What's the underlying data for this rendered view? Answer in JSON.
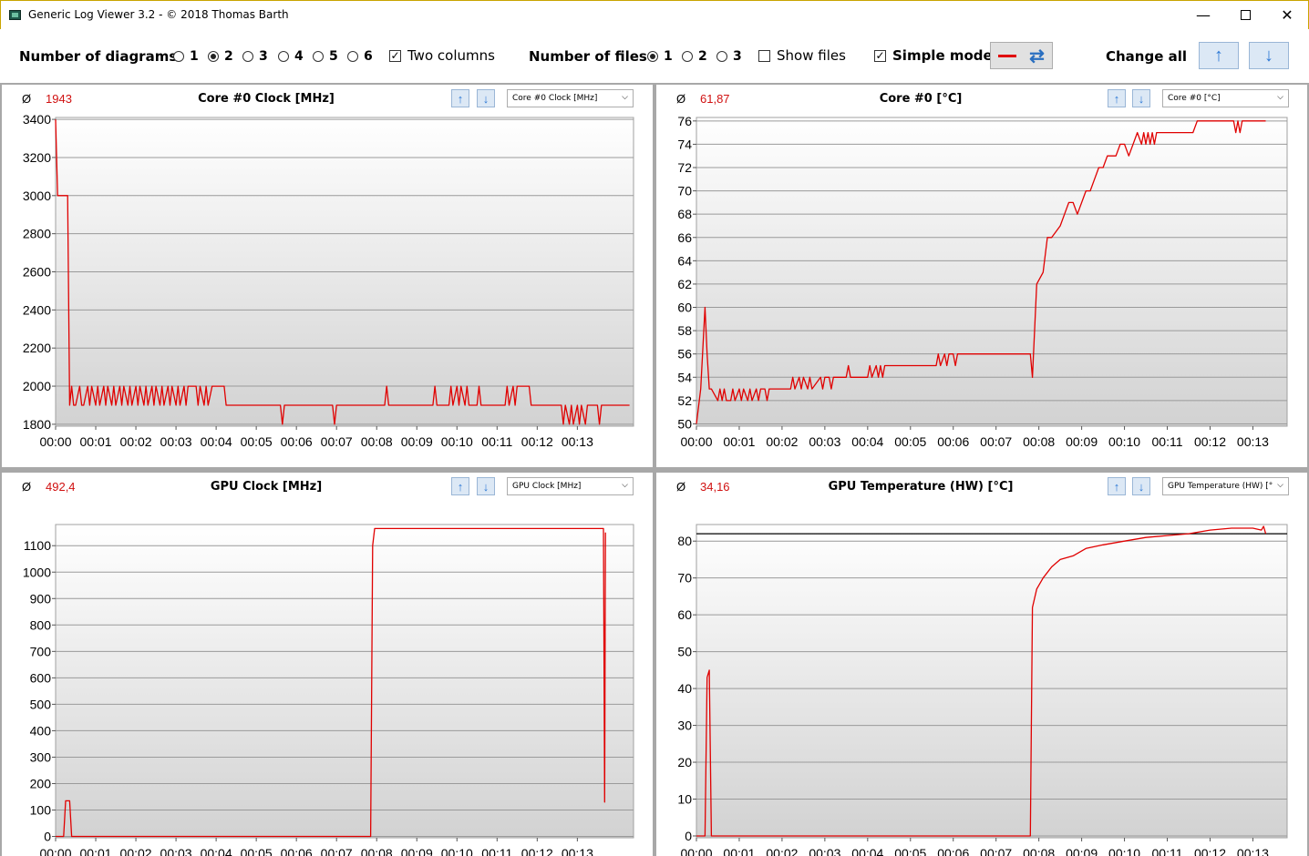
{
  "window": {
    "title": "Generic Log Viewer 3.2 - © 2018 Thomas Barth",
    "minimize_glyph": "—",
    "close_glyph": "✕"
  },
  "toolbar": {
    "diagrams_label": "Number of diagrams",
    "diagram_options": [
      "1",
      "2",
      "3",
      "4",
      "5",
      "6"
    ],
    "diagram_selected": "2",
    "two_columns_label": "Two columns",
    "two_columns_checked": true,
    "files_label": "Number of files",
    "file_options": [
      "1",
      "2",
      "3"
    ],
    "file_selected": "1",
    "show_files_label": "Show files",
    "show_files_checked": false,
    "simple_mode_label": "Simple mode",
    "simple_mode_checked": true,
    "change_all_label": "Change all",
    "line_color": "#e00000",
    "icons": [
      "refresh-icon",
      "arrow-up-icon",
      "arrow-down-icon"
    ]
  },
  "chart_data": [
    {
      "type": "line",
      "title": "Core #0 Clock [MHz]",
      "average_symbol": "Ø",
      "average": "1943",
      "selector": "Core #0 Clock [MHz]",
      "x_ticks": [
        "00:00",
        "00:01",
        "00:02",
        "00:03",
        "00:04",
        "00:05",
        "00:06",
        "00:07",
        "00:08",
        "00:09",
        "00:10",
        "00:11",
        "00:12",
        "00:13"
      ],
      "xlim_minutes": [
        0,
        14.4
      ],
      "y_ticks": [
        1800,
        2000,
        2200,
        2400,
        2600,
        2800,
        3000,
        3200,
        3400
      ],
      "ylim": [
        1790,
        3410
      ],
      "series_color": "#e00000",
      "series": {
        "x": [
          0,
          0.05,
          0.3,
          0.35,
          0.4,
          0.45,
          0.5,
          0.6,
          0.65,
          0.7,
          0.8,
          0.85,
          0.9,
          1.0,
          1.05,
          1.1,
          1.2,
          1.25,
          1.3,
          1.4,
          1.45,
          1.5,
          1.6,
          1.65,
          1.7,
          1.8,
          1.85,
          1.9,
          2.0,
          2.05,
          2.1,
          2.2,
          2.25,
          2.3,
          2.4,
          2.45,
          2.5,
          2.6,
          2.65,
          2.7,
          2.8,
          2.85,
          2.9,
          3.0,
          3.05,
          3.1,
          3.2,
          3.25,
          3.3,
          3.5,
          3.55,
          3.6,
          3.7,
          3.75,
          3.8,
          3.9,
          3.95,
          4.0,
          4.2,
          4.25,
          5.6,
          5.65,
          5.7,
          6.9,
          6.95,
          7.0,
          8.2,
          8.25,
          8.3,
          9.4,
          9.45,
          9.5,
          9.8,
          9.85,
          9.9,
          10.0,
          10.05,
          10.1,
          10.2,
          10.25,
          10.3,
          10.5,
          10.55,
          10.6,
          11.2,
          11.25,
          11.3,
          11.4,
          11.45,
          11.5,
          11.8,
          11.85,
          11.9,
          12.6,
          12.65,
          12.7,
          12.8,
          12.85,
          12.9,
          13.0,
          13.05,
          13.1,
          13.2,
          13.25,
          13.3,
          13.5,
          13.55,
          13.6,
          14.3
        ],
        "y": [
          3400,
          3000,
          3000,
          1900,
          2000,
          1900,
          1900,
          2000,
          1900,
          1900,
          2000,
          1900,
          2000,
          1900,
          2000,
          1900,
          2000,
          1900,
          2000,
          1900,
          2000,
          1900,
          2000,
          1900,
          2000,
          1900,
          2000,
          1900,
          2000,
          1900,
          2000,
          1900,
          2000,
          1900,
          2000,
          1900,
          2000,
          1900,
          2000,
          1900,
          2000,
          1900,
          2000,
          1900,
          2000,
          1900,
          2000,
          1900,
          2000,
          2000,
          1900,
          2000,
          1900,
          2000,
          1900,
          2000,
          2000,
          2000,
          2000,
          1900,
          1900,
          1800,
          1900,
          1900,
          1800,
          1900,
          1900,
          2000,
          1900,
          1900,
          2000,
          1900,
          1900,
          2000,
          1900,
          2000,
          1900,
          2000,
          1900,
          2000,
          1900,
          1900,
          2000,
          1900,
          1900,
          2000,
          1900,
          2000,
          1900,
          2000,
          2000,
          1900,
          1900,
          1900,
          1800,
          1900,
          1800,
          1900,
          1800,
          1900,
          1800,
          1900,
          1800,
          1900,
          1900,
          1900,
          1800,
          1900,
          1900
        ]
      }
    },
    {
      "type": "line",
      "title": "Core #0 [°C]",
      "average_symbol": "Ø",
      "average": "61,87",
      "selector": "Core #0 [°C]",
      "x_ticks": [
        "00:00",
        "00:01",
        "00:02",
        "00:03",
        "00:04",
        "00:05",
        "00:06",
        "00:07",
        "00:08",
        "00:09",
        "00:10",
        "00:11",
        "00:12",
        "00:13"
      ],
      "xlim_minutes": [
        0,
        13.8
      ],
      "y_ticks": [
        50,
        52,
        54,
        56,
        58,
        60,
        62,
        64,
        66,
        68,
        70,
        72,
        74,
        76
      ],
      "ylim": [
        49.8,
        76.3
      ],
      "series_color": "#e00000",
      "series": {
        "x": [
          0,
          0.1,
          0.2,
          0.25,
          0.3,
          0.35,
          0.5,
          0.55,
          0.6,
          0.65,
          0.7,
          0.8,
          0.85,
          0.9,
          1.0,
          1.05,
          1.1,
          1.2,
          1.25,
          1.3,
          1.4,
          1.45,
          1.5,
          1.6,
          1.65,
          1.7,
          2.2,
          2.25,
          2.3,
          2.4,
          2.45,
          2.5,
          2.6,
          2.65,
          2.7,
          2.9,
          2.95,
          3.0,
          3.1,
          3.15,
          3.2,
          3.5,
          3.55,
          3.6,
          3.9,
          4.0,
          4.05,
          4.1,
          4.2,
          4.25,
          4.3,
          4.35,
          4.4,
          4.5,
          5.6,
          5.65,
          5.7,
          5.8,
          5.85,
          5.9,
          6.0,
          6.05,
          6.1,
          6.4,
          6.5,
          7.8,
          7.85,
          7.95,
          8.1,
          8.2,
          8.3,
          8.5,
          8.6,
          8.7,
          8.8,
          8.9,
          9.1,
          9.2,
          9.3,
          9.4,
          9.5,
          9.6,
          9.8,
          9.9,
          10.0,
          10.1,
          10.3,
          10.4,
          10.45,
          10.5,
          10.55,
          10.6,
          10.65,
          10.7,
          10.75,
          10.8,
          11.1,
          11.2,
          11.6,
          11.7,
          11.75,
          11.8,
          12.0,
          12.05,
          12.1,
          12.3,
          12.5,
          12.55,
          12.6,
          12.65,
          12.7,
          12.75,
          12.8,
          13.3
        ],
        "y": [
          50,
          53,
          60,
          56,
          53,
          53,
          52,
          53,
          52,
          53,
          52,
          52,
          53,
          52,
          53,
          52,
          53,
          52,
          53,
          52,
          53,
          52,
          53,
          53,
          52,
          53,
          53,
          54,
          53,
          54,
          53,
          54,
          53,
          54,
          53,
          54,
          53,
          54,
          54,
          53,
          54,
          54,
          55,
          54,
          54,
          54,
          55,
          54,
          55,
          54,
          55,
          54,
          55,
          55,
          55,
          56,
          55,
          56,
          55,
          56,
          56,
          55,
          56,
          56,
          56,
          56,
          54,
          62,
          63,
          66,
          66,
          67,
          68,
          69,
          69,
          68,
          70,
          70,
          71,
          72,
          72,
          73,
          73,
          74,
          74,
          73,
          75,
          74,
          75,
          74,
          75,
          74,
          75,
          74,
          75,
          75,
          75,
          75,
          75,
          76,
          76,
          76,
          76,
          76,
          76,
          76,
          76,
          76,
          75,
          76,
          75,
          76,
          76,
          76
        ]
      }
    },
    {
      "type": "line",
      "title": "GPU Clock [MHz]",
      "average_symbol": "Ø",
      "average": "492,4",
      "selector": "GPU Clock [MHz]",
      "x_ticks": [
        "00:00",
        "00:01",
        "00:02",
        "00:03",
        "00:04",
        "00:05",
        "00:06",
        "00:07",
        "00:08",
        "00:09",
        "00:10",
        "00:11",
        "00:12",
        "00:13"
      ],
      "xlim_minutes": [
        0,
        14.4
      ],
      "y_ticks": [
        0,
        100,
        200,
        300,
        400,
        500,
        600,
        700,
        800,
        900,
        1000,
        1100
      ],
      "ylim": [
        -5,
        1180
      ],
      "series_color": "#e00000",
      "series": {
        "x": [
          0,
          0.2,
          0.25,
          0.35,
          0.4,
          7.85,
          7.9,
          7.95,
          13.55,
          13.6,
          13.65,
          13.68,
          13.7
        ],
        "y": [
          0,
          0,
          135,
          135,
          0,
          0,
          1100,
          1165,
          1165,
          1165,
          1165,
          130,
          1150
        ]
      }
    },
    {
      "type": "line",
      "title": "GPU Temperature (HW) [°C]",
      "average_symbol": "Ø",
      "average": "34,16",
      "selector": "GPU Temperature (HW) [°",
      "x_ticks": [
        "00:00",
        "00:01",
        "00:02",
        "00:03",
        "00:04",
        "00:05",
        "00:06",
        "00:07",
        "00:08",
        "00:09",
        "00:10",
        "00:11",
        "00:12",
        "00:13"
      ],
      "xlim_minutes": [
        0,
        13.8
      ],
      "y_ticks": [
        0,
        10,
        20,
        30,
        40,
        50,
        60,
        70,
        80
      ],
      "ylim": [
        -0.5,
        84.5
      ],
      "reference_line": 82,
      "series_color": "#e00000",
      "series": {
        "x": [
          0,
          0.2,
          0.25,
          0.3,
          0.35,
          0.4,
          7.8,
          7.85,
          7.95,
          8.1,
          8.3,
          8.5,
          8.8,
          9.1,
          9.5,
          10.0,
          10.5,
          11.0,
          11.5,
          12.0,
          12.5,
          13.0,
          13.2,
          13.25,
          13.3
        ],
        "y": [
          0,
          0,
          43,
          45,
          0,
          0,
          0,
          62,
          67,
          70,
          73,
          75,
          76,
          78,
          79,
          80,
          81,
          81.5,
          82,
          83,
          83.5,
          83.5,
          83,
          84,
          82
        ]
      }
    }
  ]
}
